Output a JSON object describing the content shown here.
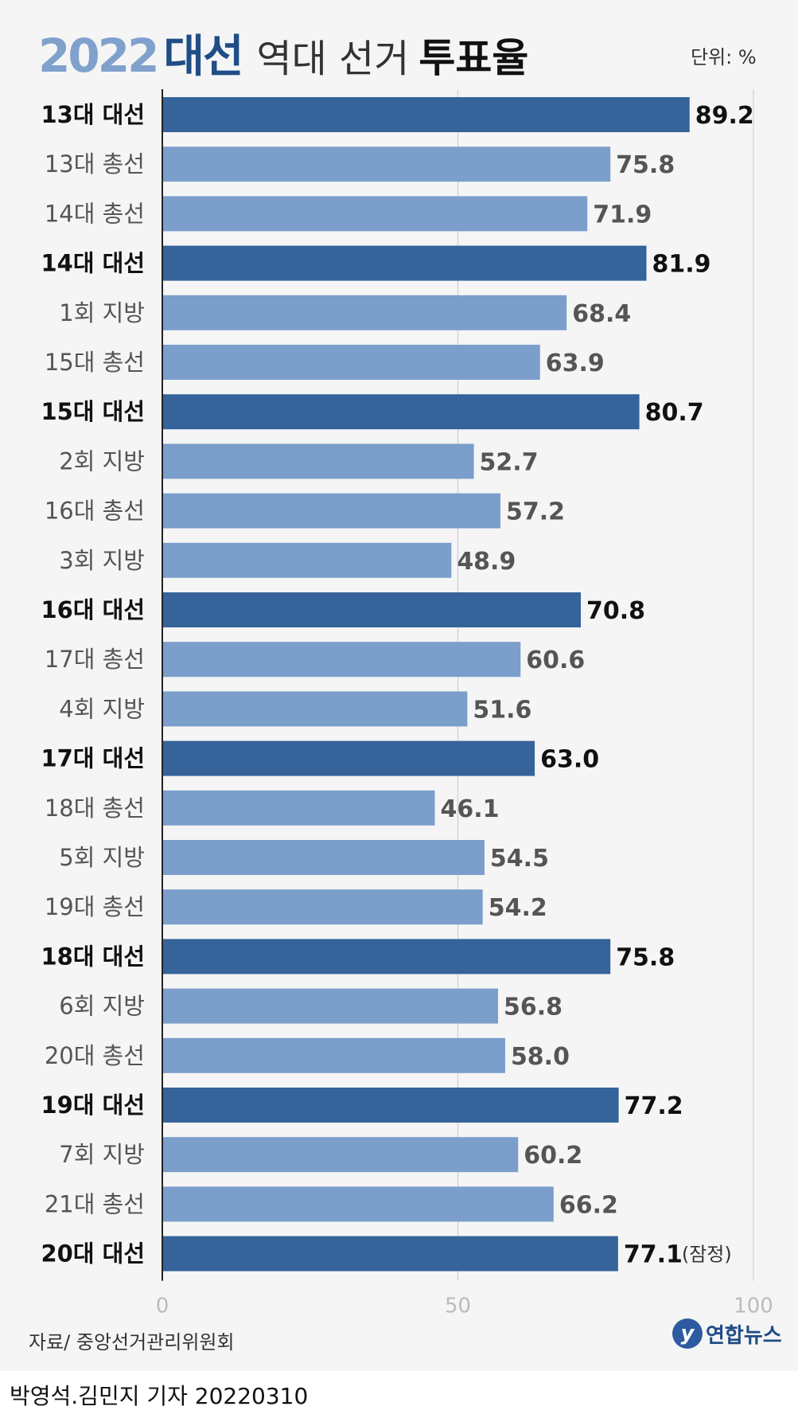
{
  "header": {
    "year": "2022",
    "daeseon": "대선",
    "mid": "역대 선거",
    "end": "투표율",
    "unit": "단위: %"
  },
  "footer": {
    "source": "자료/ 중앙선거관리위원회",
    "logo_mark": "y",
    "logo_text": "연합뉴스",
    "credit": "박영석.김민지 기자  20220310"
  },
  "colors": {
    "presidential": "#35639a",
    "other": "#7b9ecb",
    "label_bold": "#111111",
    "label_normal": "#555555"
  },
  "chart_data": {
    "type": "bar",
    "orientation": "horizontal",
    "xlim": [
      0,
      100
    ],
    "xticks": [
      0,
      50,
      100
    ],
    "grid": true,
    "categories": [
      "13대 대선",
      "13대 총선",
      "14대 총선",
      "14대 대선",
      "1회 지방",
      "15대 총선",
      "15대 대선",
      "2회 지방",
      "16대 총선",
      "3회 지방",
      "16대 대선",
      "17대 총선",
      "4회 지방",
      "17대 대선",
      "18대 총선",
      "5회 지방",
      "19대 총선",
      "18대 대선",
      "6회 지방",
      "20대 총선",
      "19대 대선",
      "7회 지방",
      "21대 총선",
      "20대 대선"
    ],
    "values": [
      89.2,
      75.8,
      71.9,
      81.9,
      68.4,
      63.9,
      80.7,
      52.7,
      57.2,
      48.9,
      70.8,
      60.6,
      51.6,
      63.0,
      46.1,
      54.5,
      54.2,
      75.8,
      56.8,
      58.0,
      77.2,
      60.2,
      66.2,
      77.1
    ],
    "value_labels": [
      "89.2",
      "75.8",
      "71.9",
      "81.9",
      "68.4",
      "63.9",
      "80.7",
      "52.7",
      "57.2",
      "48.9",
      "70.8",
      "60.6",
      "51.6",
      "63.0",
      "46.1",
      "54.5",
      "54.2",
      "75.8",
      "56.8",
      "58.0",
      "77.2",
      "60.2",
      "66.2",
      "77.1"
    ],
    "presidential": [
      true,
      false,
      false,
      true,
      false,
      false,
      true,
      false,
      false,
      false,
      true,
      false,
      false,
      true,
      false,
      false,
      false,
      true,
      false,
      false,
      true,
      false,
      false,
      true
    ],
    "annotation": "(잠정)"
  }
}
